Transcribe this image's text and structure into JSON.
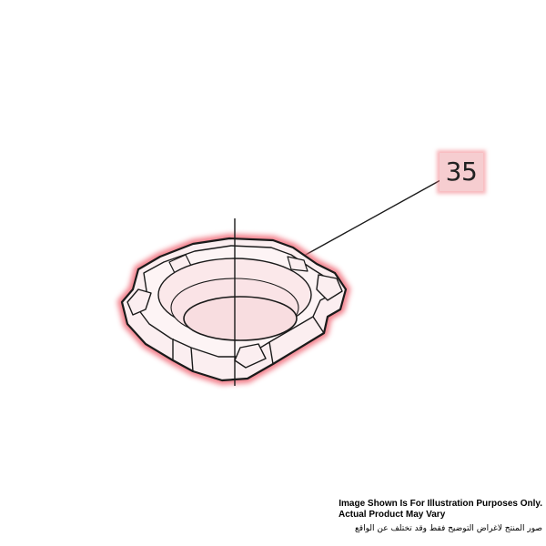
{
  "part": {
    "callout_number": "35",
    "highlight_color": "#f06a78",
    "line_color": "#1a1a1a"
  },
  "disclaimer": {
    "english_line1": "Image Shown Is For Illustration Purposes Only.",
    "english_line2": "Actual Product May Vary",
    "arabic_line": "صور المنتج لاغراض التوضيح فقط وقد تختلف عن الواقع"
  }
}
